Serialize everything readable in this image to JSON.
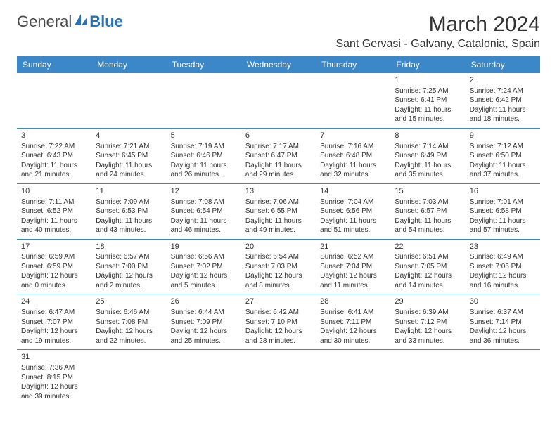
{
  "logo": {
    "general": "General",
    "blue": "Blue"
  },
  "title": "March 2024",
  "location": "Sant Gervasi - Galvany, Catalonia, Spain",
  "colors": {
    "header_bg": "#3b87c8",
    "header_text": "#ffffff",
    "border": "#3b87c8",
    "logo_blue": "#2a72b5"
  },
  "day_names": [
    "Sunday",
    "Monday",
    "Tuesday",
    "Wednesday",
    "Thursday",
    "Friday",
    "Saturday"
  ],
  "weeks": [
    [
      null,
      null,
      null,
      null,
      null,
      {
        "num": "1",
        "sunrise": "Sunrise: 7:25 AM",
        "sunset": "Sunset: 6:41 PM",
        "daylight1": "Daylight: 11 hours",
        "daylight2": "and 15 minutes."
      },
      {
        "num": "2",
        "sunrise": "Sunrise: 7:24 AM",
        "sunset": "Sunset: 6:42 PM",
        "daylight1": "Daylight: 11 hours",
        "daylight2": "and 18 minutes."
      }
    ],
    [
      {
        "num": "3",
        "sunrise": "Sunrise: 7:22 AM",
        "sunset": "Sunset: 6:43 PM",
        "daylight1": "Daylight: 11 hours",
        "daylight2": "and 21 minutes."
      },
      {
        "num": "4",
        "sunrise": "Sunrise: 7:21 AM",
        "sunset": "Sunset: 6:45 PM",
        "daylight1": "Daylight: 11 hours",
        "daylight2": "and 24 minutes."
      },
      {
        "num": "5",
        "sunrise": "Sunrise: 7:19 AM",
        "sunset": "Sunset: 6:46 PM",
        "daylight1": "Daylight: 11 hours",
        "daylight2": "and 26 minutes."
      },
      {
        "num": "6",
        "sunrise": "Sunrise: 7:17 AM",
        "sunset": "Sunset: 6:47 PM",
        "daylight1": "Daylight: 11 hours",
        "daylight2": "and 29 minutes."
      },
      {
        "num": "7",
        "sunrise": "Sunrise: 7:16 AM",
        "sunset": "Sunset: 6:48 PM",
        "daylight1": "Daylight: 11 hours",
        "daylight2": "and 32 minutes."
      },
      {
        "num": "8",
        "sunrise": "Sunrise: 7:14 AM",
        "sunset": "Sunset: 6:49 PM",
        "daylight1": "Daylight: 11 hours",
        "daylight2": "and 35 minutes."
      },
      {
        "num": "9",
        "sunrise": "Sunrise: 7:12 AM",
        "sunset": "Sunset: 6:50 PM",
        "daylight1": "Daylight: 11 hours",
        "daylight2": "and 37 minutes."
      }
    ],
    [
      {
        "num": "10",
        "sunrise": "Sunrise: 7:11 AM",
        "sunset": "Sunset: 6:52 PM",
        "daylight1": "Daylight: 11 hours",
        "daylight2": "and 40 minutes."
      },
      {
        "num": "11",
        "sunrise": "Sunrise: 7:09 AM",
        "sunset": "Sunset: 6:53 PM",
        "daylight1": "Daylight: 11 hours",
        "daylight2": "and 43 minutes."
      },
      {
        "num": "12",
        "sunrise": "Sunrise: 7:08 AM",
        "sunset": "Sunset: 6:54 PM",
        "daylight1": "Daylight: 11 hours",
        "daylight2": "and 46 minutes."
      },
      {
        "num": "13",
        "sunrise": "Sunrise: 7:06 AM",
        "sunset": "Sunset: 6:55 PM",
        "daylight1": "Daylight: 11 hours",
        "daylight2": "and 49 minutes."
      },
      {
        "num": "14",
        "sunrise": "Sunrise: 7:04 AM",
        "sunset": "Sunset: 6:56 PM",
        "daylight1": "Daylight: 11 hours",
        "daylight2": "and 51 minutes."
      },
      {
        "num": "15",
        "sunrise": "Sunrise: 7:03 AM",
        "sunset": "Sunset: 6:57 PM",
        "daylight1": "Daylight: 11 hours",
        "daylight2": "and 54 minutes."
      },
      {
        "num": "16",
        "sunrise": "Sunrise: 7:01 AM",
        "sunset": "Sunset: 6:58 PM",
        "daylight1": "Daylight: 11 hours",
        "daylight2": "and 57 minutes."
      }
    ],
    [
      {
        "num": "17",
        "sunrise": "Sunrise: 6:59 AM",
        "sunset": "Sunset: 6:59 PM",
        "daylight1": "Daylight: 12 hours",
        "daylight2": "and 0 minutes."
      },
      {
        "num": "18",
        "sunrise": "Sunrise: 6:57 AM",
        "sunset": "Sunset: 7:00 PM",
        "daylight1": "Daylight: 12 hours",
        "daylight2": "and 2 minutes."
      },
      {
        "num": "19",
        "sunrise": "Sunrise: 6:56 AM",
        "sunset": "Sunset: 7:02 PM",
        "daylight1": "Daylight: 12 hours",
        "daylight2": "and 5 minutes."
      },
      {
        "num": "20",
        "sunrise": "Sunrise: 6:54 AM",
        "sunset": "Sunset: 7:03 PM",
        "daylight1": "Daylight: 12 hours",
        "daylight2": "and 8 minutes."
      },
      {
        "num": "21",
        "sunrise": "Sunrise: 6:52 AM",
        "sunset": "Sunset: 7:04 PM",
        "daylight1": "Daylight: 12 hours",
        "daylight2": "and 11 minutes."
      },
      {
        "num": "22",
        "sunrise": "Sunrise: 6:51 AM",
        "sunset": "Sunset: 7:05 PM",
        "daylight1": "Daylight: 12 hours",
        "daylight2": "and 14 minutes."
      },
      {
        "num": "23",
        "sunrise": "Sunrise: 6:49 AM",
        "sunset": "Sunset: 7:06 PM",
        "daylight1": "Daylight: 12 hours",
        "daylight2": "and 16 minutes."
      }
    ],
    [
      {
        "num": "24",
        "sunrise": "Sunrise: 6:47 AM",
        "sunset": "Sunset: 7:07 PM",
        "daylight1": "Daylight: 12 hours",
        "daylight2": "and 19 minutes."
      },
      {
        "num": "25",
        "sunrise": "Sunrise: 6:46 AM",
        "sunset": "Sunset: 7:08 PM",
        "daylight1": "Daylight: 12 hours",
        "daylight2": "and 22 minutes."
      },
      {
        "num": "26",
        "sunrise": "Sunrise: 6:44 AM",
        "sunset": "Sunset: 7:09 PM",
        "daylight1": "Daylight: 12 hours",
        "daylight2": "and 25 minutes."
      },
      {
        "num": "27",
        "sunrise": "Sunrise: 6:42 AM",
        "sunset": "Sunset: 7:10 PM",
        "daylight1": "Daylight: 12 hours",
        "daylight2": "and 28 minutes."
      },
      {
        "num": "28",
        "sunrise": "Sunrise: 6:41 AM",
        "sunset": "Sunset: 7:11 PM",
        "daylight1": "Daylight: 12 hours",
        "daylight2": "and 30 minutes."
      },
      {
        "num": "29",
        "sunrise": "Sunrise: 6:39 AM",
        "sunset": "Sunset: 7:12 PM",
        "daylight1": "Daylight: 12 hours",
        "daylight2": "and 33 minutes."
      },
      {
        "num": "30",
        "sunrise": "Sunrise: 6:37 AM",
        "sunset": "Sunset: 7:14 PM",
        "daylight1": "Daylight: 12 hours",
        "daylight2": "and 36 minutes."
      }
    ],
    [
      {
        "num": "31",
        "sunrise": "Sunrise: 7:36 AM",
        "sunset": "Sunset: 8:15 PM",
        "daylight1": "Daylight: 12 hours",
        "daylight2": "and 39 minutes."
      },
      null,
      null,
      null,
      null,
      null,
      null
    ]
  ]
}
